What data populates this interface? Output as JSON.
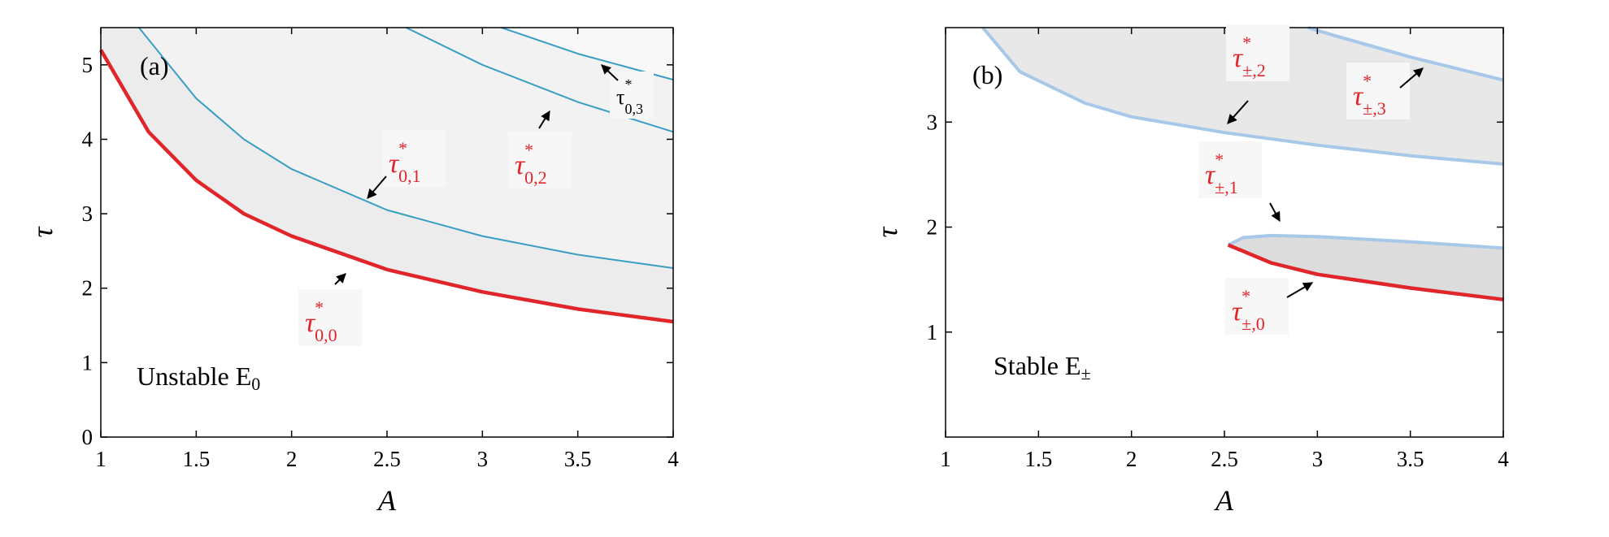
{
  "chart_data": [
    {
      "panel": "(a)",
      "type": "line",
      "xlabel": "A",
      "ylabel": "τ",
      "xlim": [
        1,
        4
      ],
      "ylim": [
        0,
        5.5
      ],
      "xticks": [
        "1",
        "1.5",
        "2",
        "2.5",
        "3",
        "3.5",
        "4"
      ],
      "yticks": [
        "0",
        "1",
        "2",
        "3",
        "4",
        "5"
      ],
      "region_text": {
        "main": "Unstable E",
        "sub": "0"
      },
      "series": [
        {
          "label": {
            "main": "τ",
            "sup": "*",
            "sub": "0,0"
          },
          "color": "#e0252b",
          "points": [
            [
              1,
              5.2
            ],
            [
              1.25,
              4.1
            ],
            [
              1.5,
              3.45
            ],
            [
              1.75,
              3.0
            ],
            [
              2,
              2.7
            ],
            [
              2.5,
              2.25
            ],
            [
              3,
              1.95
            ],
            [
              3.5,
              1.72
            ],
            [
              4,
              1.55
            ]
          ]
        },
        {
          "label": {
            "main": "τ",
            "sup": "*",
            "sub": "0,1"
          },
          "color": "#3a9ec4",
          "points": [
            [
              1.2,
              5.5
            ],
            [
              1.5,
              4.55
            ],
            [
              1.75,
              4.0
            ],
            [
              2,
              3.6
            ],
            [
              2.5,
              3.05
            ],
            [
              3,
              2.7
            ],
            [
              3.5,
              2.45
            ],
            [
              4,
              2.27
            ]
          ]
        },
        {
          "label": {
            "main": "τ",
            "sup": "*",
            "sub": "0,2"
          },
          "color": "#3a9ec4",
          "points": [
            [
              2.6,
              5.5
            ],
            [
              3,
              5.0
            ],
            [
              3.5,
              4.5
            ],
            [
              4,
              4.1
            ]
          ]
        },
        {
          "label": {
            "main": "τ",
            "sup": "*",
            "sub": "0,3"
          },
          "color": "#3a9ec4",
          "points": [
            [
              3.1,
              5.5
            ],
            [
              3.5,
              5.15
            ],
            [
              4,
              4.8
            ]
          ]
        }
      ]
    },
    {
      "panel": "(b)",
      "type": "line",
      "xlabel": "A",
      "ylabel": "τ",
      "xlim": [
        1,
        4
      ],
      "ylim": [
        0,
        3.9
      ],
      "xticks": [
        "1",
        "1.5",
        "2",
        "2.5",
        "3",
        "3.5",
        "4"
      ],
      "yticks": [
        "1",
        "2",
        "3"
      ],
      "region_text": {
        "main": "Stable E",
        "sub": "±"
      },
      "series": [
        {
          "label": {
            "main": "τ",
            "sup": "*",
            "sub": "±,2"
          },
          "color": "#a7c8e8",
          "points": [
            [
              1.2,
              3.9
            ],
            [
              1.4,
              3.48
            ],
            [
              1.75,
              3.18
            ],
            [
              2,
              3.05
            ],
            [
              2.5,
              2.9
            ],
            [
              3,
              2.78
            ],
            [
              3.5,
              2.68
            ],
            [
              4,
              2.6
            ]
          ]
        },
        {
          "label": {
            "main": "τ",
            "sup": "*",
            "sub": "±,3"
          },
          "color": "#a7c8e8",
          "points": [
            [
              2.95,
              3.9
            ],
            [
              3.1,
              3.82
            ],
            [
              3.5,
              3.62
            ],
            [
              4,
              3.4
            ]
          ]
        },
        {
          "label": {
            "main": "τ",
            "sup": "*",
            "sub": "±,1"
          },
          "color": "#a7c8e8",
          "points": [
            [
              2.52,
              1.83
            ],
            [
              2.6,
              1.9
            ],
            [
              2.75,
              1.92
            ],
            [
              3,
              1.91
            ],
            [
              3.5,
              1.86
            ],
            [
              4,
              1.8
            ]
          ]
        },
        {
          "label": {
            "main": "τ",
            "sup": "*",
            "sub": "±,0"
          },
          "color": "#e0252b",
          "points": [
            [
              2.52,
              1.83
            ],
            [
              2.75,
              1.66
            ],
            [
              3,
              1.55
            ],
            [
              3.5,
              1.42
            ],
            [
              4,
              1.31
            ]
          ]
        }
      ]
    }
  ]
}
